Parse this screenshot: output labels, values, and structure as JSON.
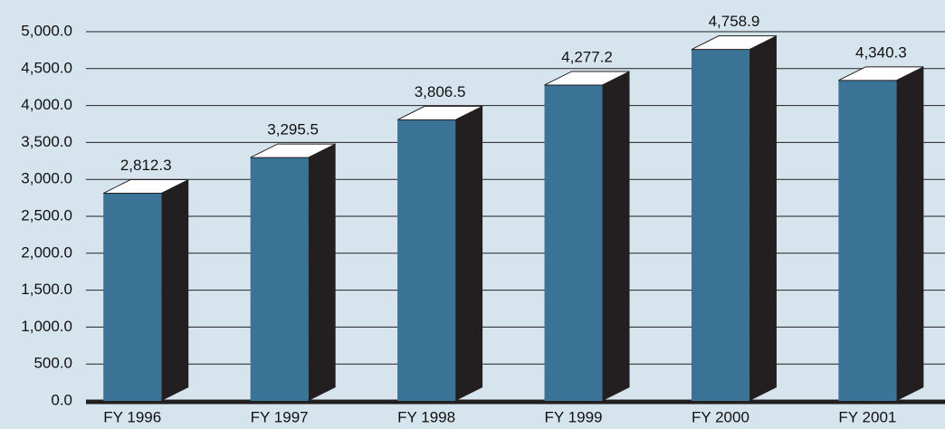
{
  "chart_data": {
    "type": "bar3d",
    "categories": [
      "FY 1996",
      "FY 1997",
      "FY 1998",
      "FY 1999",
      "FY 2000",
      "FY 2001"
    ],
    "values": [
      2812.3,
      3295.5,
      3806.5,
      4277.2,
      4758.9,
      4340.3
    ],
    "value_labels": [
      "2,812.3",
      "3,295.5",
      "3,806.5",
      "4,277.2",
      "4,758.9",
      "4,340.3"
    ],
    "color": "#3a7395",
    "ylim": [
      0,
      5000
    ],
    "yticks": [
      {
        "value": 0,
        "label": "0.0"
      },
      {
        "value": 500,
        "label": "500.0"
      },
      {
        "value": 1000,
        "label": "1,000.0"
      },
      {
        "value": 1500,
        "label": "1,500.0"
      },
      {
        "value": 2000,
        "label": "2,000.0"
      },
      {
        "value": 2500,
        "label": "2,500.0"
      },
      {
        "value": 3000,
        "label": "3,000.0"
      },
      {
        "value": 3500,
        "label": "3,500.0"
      },
      {
        "value": 4000,
        "label": "4,000.0"
      },
      {
        "value": 4500,
        "label": "4,500.0"
      },
      {
        "value": 5000,
        "label": "5,000.0"
      }
    ],
    "grid": true
  }
}
